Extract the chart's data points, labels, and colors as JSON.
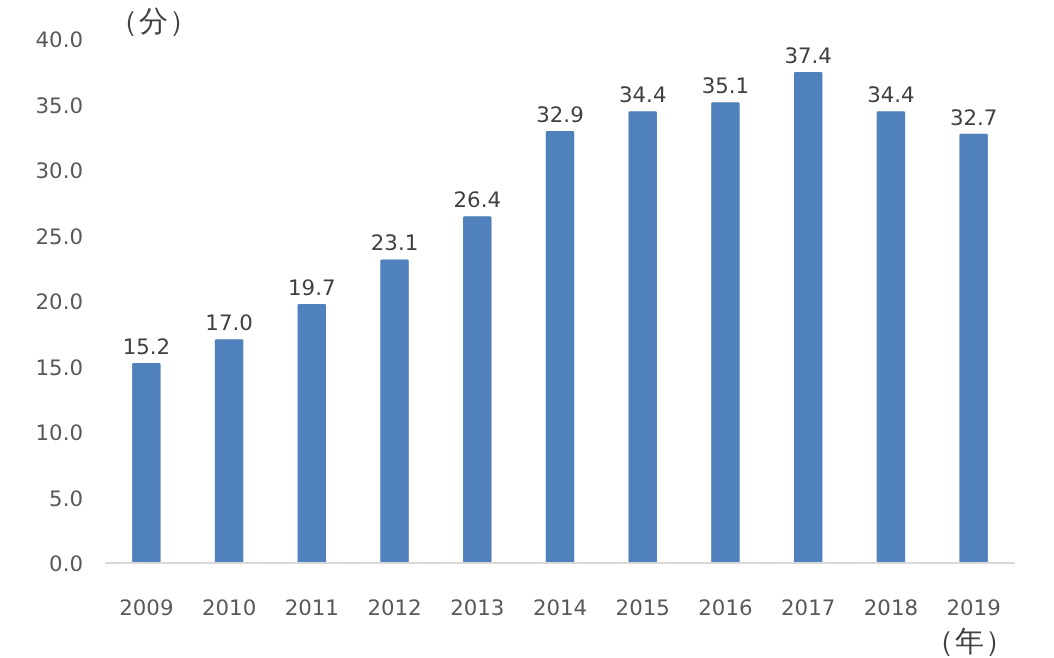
{
  "chart_data": {
    "type": "bar",
    "ylabel": "（分）",
    "xlabel": "（年）",
    "categories": [
      "2009",
      "2010",
      "2011",
      "2012",
      "2013",
      "2014",
      "2015",
      "2016",
      "2017",
      "2018",
      "2019"
    ],
    "values": [
      15.2,
      17.0,
      19.7,
      23.1,
      26.4,
      32.9,
      34.4,
      35.1,
      37.4,
      34.4,
      32.7
    ],
    "color": "#4f81bd",
    "ylim": [
      0,
      40
    ],
    "yticks": [
      {
        "value": 0,
        "label": "0.0"
      },
      {
        "value": 5,
        "label": "5.0"
      },
      {
        "value": 10,
        "label": "10.0"
      },
      {
        "value": 15,
        "label": "15.0"
      },
      {
        "value": 20,
        "label": "20.0"
      },
      {
        "value": 25,
        "label": "25.0"
      },
      {
        "value": 30,
        "label": "30.0"
      },
      {
        "value": 35,
        "label": "35.0"
      },
      {
        "value": 40,
        "label": "40.0"
      }
    ],
    "value_labels": [
      "15.2",
      "17.0",
      "19.7",
      "23.1",
      "26.4",
      "32.9",
      "34.4",
      "35.1",
      "37.4",
      "34.4",
      "32.7"
    ],
    "grid": false
  }
}
